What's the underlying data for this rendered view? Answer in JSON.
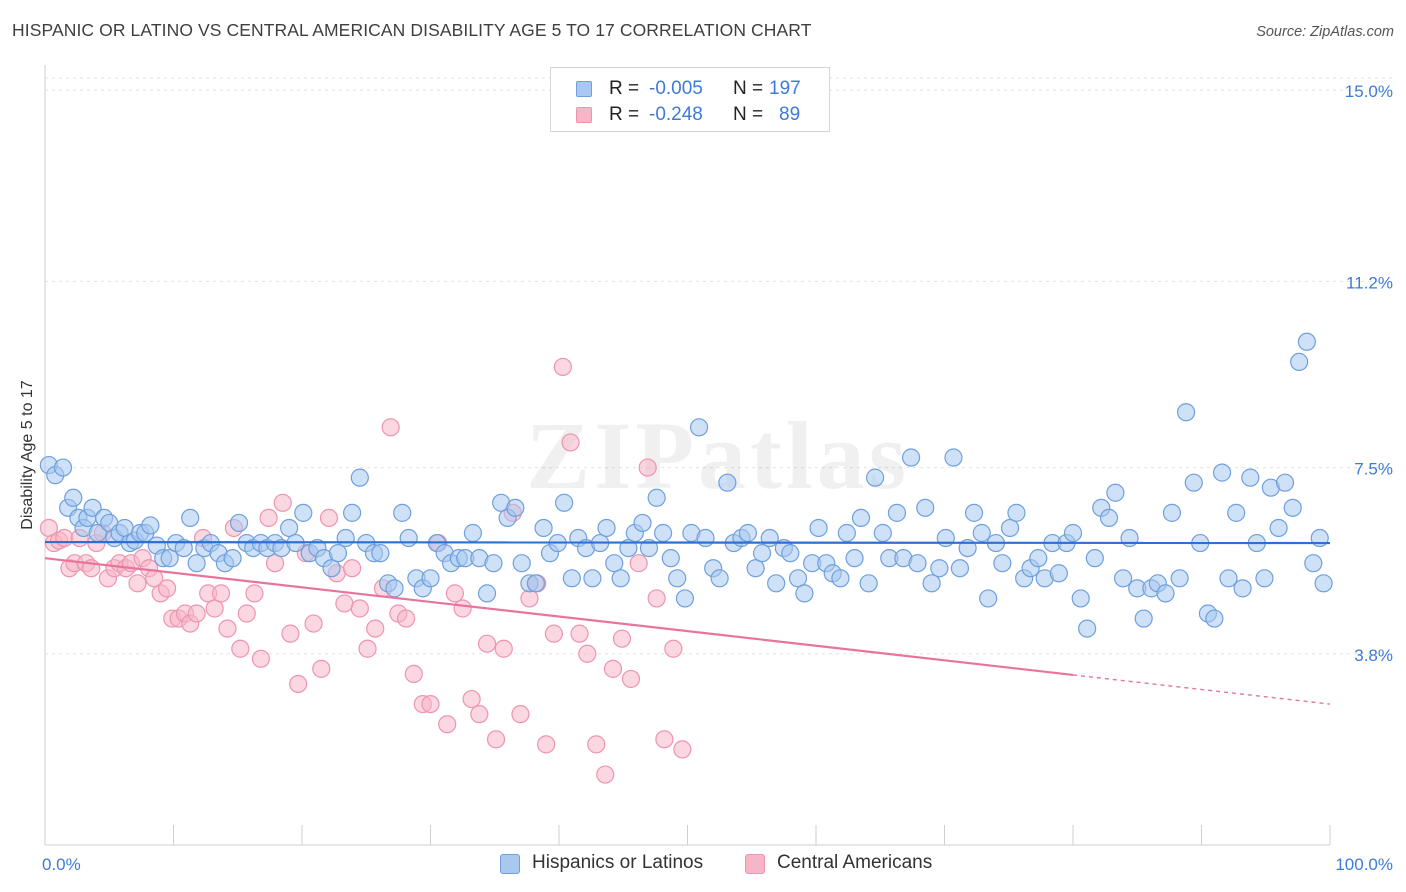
{
  "header": {
    "title": "HISPANIC OR LATINO VS CENTRAL AMERICAN DISABILITY AGE 5 TO 17 CORRELATION CHART",
    "source": "Source: ZipAtlas.com"
  },
  "watermark": "ZIPatlas",
  "legend": {
    "rows": [
      {
        "r_label": "R =",
        "r_value": "-0.005",
        "n_label": "N =",
        "n_value": "197"
      },
      {
        "r_label": "R =",
        "r_value": "-0.248",
        "n_label": "N =",
        "n_value": "89"
      }
    ]
  },
  "bottom_legend": [
    "Hispanics or Latinos",
    "Central Americans"
  ],
  "colors": {
    "blue_fill": "#a8c8f0",
    "blue_stroke": "#6fa0dc",
    "blue_line": "#2d6fd2",
    "pink_fill": "#f6b6c8",
    "pink_stroke": "#ee94b0",
    "pink_line": "#e8749e",
    "axis_text_blue": "#3d7bd8",
    "grid": "#e2e2e2"
  },
  "chart_data": {
    "type": "scatter",
    "title": "HISPANIC OR LATINO VS CENTRAL AMERICAN DISABILITY AGE 5 TO 17 CORRELATION CHART",
    "xlabel": "",
    "ylabel": "Disability Age 5 to 17",
    "xlim": [
      0,
      100
    ],
    "ylim": [
      0,
      15.5
    ],
    "x_tick_labels": [
      "0.0%",
      "100.0%"
    ],
    "y_ticks": [
      3.8,
      7.5,
      11.2,
      15.0
    ],
    "y_tick_labels": [
      "3.8%",
      "7.5%",
      "11.2%",
      "15.0%"
    ],
    "grid": true,
    "legend_position": "top-center",
    "series": [
      {
        "name": "Hispanics or Latinos",
        "color": "#a8c8f0",
        "trend": {
          "x": [
            0,
            100
          ],
          "y": [
            6.02,
            6.0
          ],
          "x_dashed_from": 100
        },
        "points": [
          [
            0.3,
            7.55
          ],
          [
            0.8,
            7.35
          ],
          [
            1.4,
            7.5
          ],
          [
            1.8,
            6.7
          ],
          [
            2.2,
            6.9
          ],
          [
            2.6,
            6.5
          ],
          [
            3.0,
            6.3
          ],
          [
            3.3,
            6.5
          ],
          [
            3.7,
            6.7
          ],
          [
            4.1,
            6.2
          ],
          [
            4.6,
            6.5
          ],
          [
            5.0,
            6.4
          ],
          [
            5.4,
            6.1
          ],
          [
            5.8,
            6.2
          ],
          [
            6.2,
            6.3
          ],
          [
            6.6,
            6.0
          ],
          [
            7.0,
            6.05
          ],
          [
            7.4,
            6.2
          ],
          [
            7.8,
            6.2
          ],
          [
            8.2,
            6.35
          ],
          [
            8.7,
            5.95
          ],
          [
            9.2,
            5.7
          ],
          [
            9.7,
            5.7
          ],
          [
            10.2,
            6.0
          ],
          [
            10.8,
            5.9
          ],
          [
            11.3,
            6.5
          ],
          [
            11.8,
            5.6
          ],
          [
            12.4,
            5.9
          ],
          [
            12.9,
            6.0
          ],
          [
            13.5,
            5.8
          ],
          [
            14.0,
            5.6
          ],
          [
            14.6,
            5.7
          ],
          [
            15.1,
            6.4
          ],
          [
            15.7,
            6.0
          ],
          [
            16.2,
            5.9
          ],
          [
            16.8,
            6.0
          ],
          [
            17.3,
            5.9
          ],
          [
            17.9,
            6.0
          ],
          [
            18.4,
            5.9
          ],
          [
            19.0,
            6.3
          ],
          [
            19.5,
            6.0
          ],
          [
            20.1,
            6.6
          ],
          [
            20.6,
            5.8
          ],
          [
            21.2,
            5.9
          ],
          [
            21.7,
            5.7
          ],
          [
            22.3,
            5.5
          ],
          [
            22.8,
            5.8
          ],
          [
            23.4,
            6.1
          ],
          [
            23.9,
            6.6
          ],
          [
            24.5,
            7.3
          ],
          [
            25.0,
            6.0
          ],
          [
            25.6,
            5.8
          ],
          [
            26.1,
            5.8
          ],
          [
            26.7,
            5.2
          ],
          [
            27.2,
            5.1
          ],
          [
            27.8,
            6.6
          ],
          [
            28.3,
            6.1
          ],
          [
            28.9,
            5.3
          ],
          [
            29.4,
            5.1
          ],
          [
            30.0,
            5.3
          ],
          [
            30.5,
            6.0
          ],
          [
            31.1,
            5.8
          ],
          [
            31.6,
            5.6
          ],
          [
            32.2,
            5.7
          ],
          [
            32.7,
            5.7
          ],
          [
            33.3,
            6.2
          ],
          [
            33.8,
            5.7
          ],
          [
            34.4,
            5.0
          ],
          [
            34.9,
            5.6
          ],
          [
            35.5,
            6.8
          ],
          [
            36.0,
            6.5
          ],
          [
            36.6,
            6.7
          ],
          [
            37.1,
            5.6
          ],
          [
            37.7,
            5.2
          ],
          [
            38.2,
            5.2
          ],
          [
            38.8,
            6.3
          ],
          [
            39.3,
            5.8
          ],
          [
            39.9,
            6.0
          ],
          [
            40.4,
            6.8
          ],
          [
            41.0,
            5.3
          ],
          [
            41.5,
            6.1
          ],
          [
            42.1,
            5.9
          ],
          [
            42.6,
            5.3
          ],
          [
            43.2,
            6.0
          ],
          [
            43.7,
            6.3
          ],
          [
            44.3,
            5.6
          ],
          [
            44.8,
            5.3
          ],
          [
            45.4,
            5.9
          ],
          [
            45.9,
            6.2
          ],
          [
            46.5,
            6.4
          ],
          [
            47.0,
            5.9
          ],
          [
            47.6,
            6.9
          ],
          [
            48.1,
            6.2
          ],
          [
            48.7,
            5.7
          ],
          [
            49.2,
            5.3
          ],
          [
            49.8,
            4.9
          ],
          [
            50.3,
            6.2
          ],
          [
            50.9,
            8.3
          ],
          [
            51.4,
            6.1
          ],
          [
            52.0,
            5.5
          ],
          [
            52.5,
            5.3
          ],
          [
            53.1,
            7.2
          ],
          [
            53.6,
            6.0
          ],
          [
            54.2,
            6.1
          ],
          [
            54.7,
            6.2
          ],
          [
            55.3,
            5.5
          ],
          [
            55.8,
            5.8
          ],
          [
            56.4,
            6.1
          ],
          [
            56.9,
            5.2
          ],
          [
            57.5,
            5.9
          ],
          [
            58.0,
            5.8
          ],
          [
            58.6,
            5.3
          ],
          [
            59.1,
            5.0
          ],
          [
            59.7,
            5.6
          ],
          [
            60.2,
            6.3
          ],
          [
            60.8,
            5.6
          ],
          [
            61.3,
            5.4
          ],
          [
            61.9,
            5.3
          ],
          [
            62.4,
            6.2
          ],
          [
            63.0,
            5.7
          ],
          [
            63.5,
            6.5
          ],
          [
            64.1,
            5.2
          ],
          [
            64.6,
            7.3
          ],
          [
            65.2,
            6.2
          ],
          [
            65.7,
            5.7
          ],
          [
            66.3,
            6.6
          ],
          [
            66.8,
            5.7
          ],
          [
            67.4,
            7.7
          ],
          [
            67.9,
            5.6
          ],
          [
            68.5,
            6.7
          ],
          [
            69.0,
            5.2
          ],
          [
            69.6,
            5.5
          ],
          [
            70.1,
            6.1
          ],
          [
            70.7,
            7.7
          ],
          [
            71.2,
            5.5
          ],
          [
            71.8,
            5.9
          ],
          [
            72.3,
            6.6
          ],
          [
            72.9,
            6.2
          ],
          [
            73.4,
            4.9
          ],
          [
            74.0,
            6.0
          ],
          [
            74.5,
            5.6
          ],
          [
            75.1,
            6.3
          ],
          [
            75.6,
            6.6
          ],
          [
            76.2,
            5.3
          ],
          [
            76.7,
            5.5
          ],
          [
            77.3,
            5.7
          ],
          [
            77.8,
            5.3
          ],
          [
            78.4,
            6.0
          ],
          [
            78.9,
            5.4
          ],
          [
            79.5,
            6.0
          ],
          [
            80.0,
            6.2
          ],
          [
            80.6,
            4.9
          ],
          [
            81.1,
            4.3
          ],
          [
            81.7,
            5.7
          ],
          [
            82.2,
            6.7
          ],
          [
            82.8,
            6.5
          ],
          [
            83.3,
            7.0
          ],
          [
            83.9,
            5.3
          ],
          [
            84.4,
            6.1
          ],
          [
            85.0,
            5.1
          ],
          [
            85.5,
            4.5
          ],
          [
            86.1,
            5.1
          ],
          [
            86.6,
            5.2
          ],
          [
            87.2,
            5.0
          ],
          [
            87.7,
            6.6
          ],
          [
            88.3,
            5.3
          ],
          [
            88.8,
            8.6
          ],
          [
            89.4,
            7.2
          ],
          [
            89.9,
            6.0
          ],
          [
            90.5,
            4.6
          ],
          [
            91.0,
            4.5
          ],
          [
            91.6,
            7.4
          ],
          [
            92.1,
            5.3
          ],
          [
            92.7,
            6.6
          ],
          [
            93.2,
            5.1
          ],
          [
            93.8,
            7.3
          ],
          [
            94.3,
            6.0
          ],
          [
            94.9,
            5.3
          ],
          [
            95.4,
            7.1
          ],
          [
            96.0,
            6.3
          ],
          [
            96.5,
            7.2
          ],
          [
            97.1,
            6.7
          ],
          [
            97.6,
            9.6
          ],
          [
            98.2,
            10.0
          ],
          [
            98.7,
            5.6
          ],
          [
            99.2,
            6.1
          ],
          [
            99.5,
            5.2
          ]
        ]
      },
      {
        "name": "Central Americans",
        "color": "#f6b6c8",
        "trend": {
          "x": [
            0,
            100
          ],
          "y": [
            5.7,
            2.8
          ],
          "x_dashed_from": 80
        },
        "points": [
          [
            0.3,
            6.3
          ],
          [
            0.7,
            6.0
          ],
          [
            1.1,
            6.05
          ],
          [
            1.5,
            6.1
          ],
          [
            1.9,
            5.5
          ],
          [
            2.3,
            5.6
          ],
          [
            2.7,
            6.1
          ],
          [
            3.2,
            5.6
          ],
          [
            3.6,
            5.5
          ],
          [
            4.0,
            6.0
          ],
          [
            4.5,
            6.2
          ],
          [
            4.9,
            5.3
          ],
          [
            5.4,
            5.5
          ],
          [
            5.8,
            5.6
          ],
          [
            6.3,
            5.5
          ],
          [
            6.7,
            5.6
          ],
          [
            7.2,
            5.2
          ],
          [
            7.6,
            5.7
          ],
          [
            8.1,
            5.5
          ],
          [
            8.5,
            5.3
          ],
          [
            9.0,
            5.0
          ],
          [
            9.5,
            5.1
          ],
          [
            9.9,
            4.5
          ],
          [
            10.4,
            4.5
          ],
          [
            10.9,
            4.6
          ],
          [
            11.3,
            4.4
          ],
          [
            11.8,
            4.6
          ],
          [
            12.3,
            6.1
          ],
          [
            12.7,
            5.0
          ],
          [
            13.2,
            4.7
          ],
          [
            13.7,
            5.0
          ],
          [
            14.2,
            4.3
          ],
          [
            14.7,
            6.3
          ],
          [
            15.2,
            3.9
          ],
          [
            15.7,
            4.6
          ],
          [
            16.3,
            5.0
          ],
          [
            16.8,
            3.7
          ],
          [
            17.4,
            6.5
          ],
          [
            17.9,
            5.6
          ],
          [
            18.5,
            6.8
          ],
          [
            19.1,
            4.2
          ],
          [
            19.7,
            3.2
          ],
          [
            20.3,
            5.8
          ],
          [
            20.9,
            4.4
          ],
          [
            21.5,
            3.5
          ],
          [
            22.1,
            6.5
          ],
          [
            22.7,
            5.4
          ],
          [
            23.3,
            4.8
          ],
          [
            23.9,
            5.5
          ],
          [
            24.5,
            4.7
          ],
          [
            25.1,
            3.9
          ],
          [
            25.7,
            4.3
          ],
          [
            26.3,
            5.1
          ],
          [
            26.9,
            8.3
          ],
          [
            27.5,
            4.6
          ],
          [
            28.1,
            4.5
          ],
          [
            28.7,
            3.4
          ],
          [
            29.4,
            2.8
          ],
          [
            30.0,
            2.8
          ],
          [
            30.6,
            6.0
          ],
          [
            31.3,
            2.4
          ],
          [
            31.9,
            5.0
          ],
          [
            32.5,
            4.7
          ],
          [
            33.2,
            2.9
          ],
          [
            33.8,
            2.6
          ],
          [
            34.4,
            4.0
          ],
          [
            35.1,
            2.1
          ],
          [
            35.7,
            3.9
          ],
          [
            36.4,
            6.6
          ],
          [
            37.0,
            2.6
          ],
          [
            37.7,
            4.9
          ],
          [
            38.3,
            5.2
          ],
          [
            39.0,
            2.0
          ],
          [
            39.6,
            4.2
          ],
          [
            40.3,
            9.5
          ],
          [
            40.9,
            8.0
          ],
          [
            41.6,
            4.2
          ],
          [
            42.2,
            3.8
          ],
          [
            42.9,
            2.0
          ],
          [
            43.6,
            1.4
          ],
          [
            44.2,
            3.5
          ],
          [
            44.9,
            4.1
          ],
          [
            45.6,
            3.3
          ],
          [
            46.2,
            5.6
          ],
          [
            46.9,
            7.5
          ],
          [
            47.6,
            4.9
          ],
          [
            48.2,
            2.1
          ],
          [
            48.9,
            3.9
          ],
          [
            49.6,
            1.9
          ]
        ]
      }
    ]
  }
}
